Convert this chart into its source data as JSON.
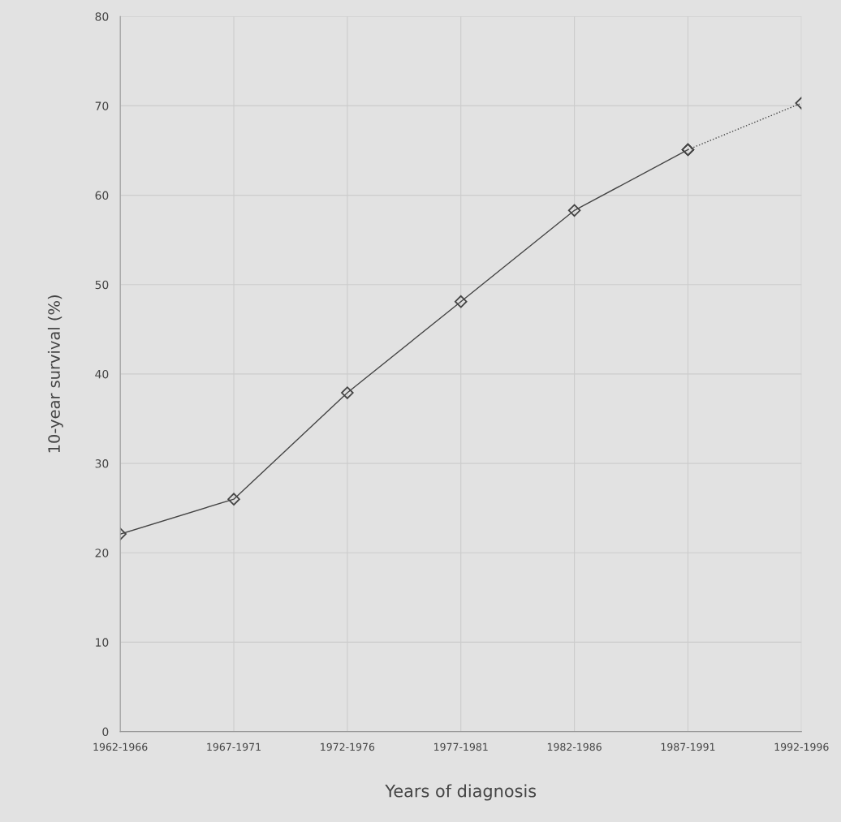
{
  "chart_data": {
    "type": "line",
    "xlabel": "Years of diagnosis",
    "ylabel": "10-year survival (%)",
    "categories": [
      "1962-1966",
      "1967-1971",
      "1972-1976",
      "1977-1981",
      "1982-1986",
      "1987-1991",
      "1992-1996"
    ],
    "series": [
      {
        "color": "#444444",
        "values": [
          22.1,
          26.0,
          37.9,
          48.1,
          58.3,
          65.1,
          null
        ],
        "line_style": "solid"
      },
      {
        "color": "#444444",
        "values": [
          null,
          null,
          null,
          null,
          null,
          65.1,
          70.3
        ],
        "line_style": "dotted"
      }
    ],
    "ylim": [
      0,
      80
    ],
    "yticks": [
      0,
      10,
      20,
      30,
      40,
      50,
      60,
      70,
      80
    ],
    "grid": true,
    "marker": "diamond"
  }
}
